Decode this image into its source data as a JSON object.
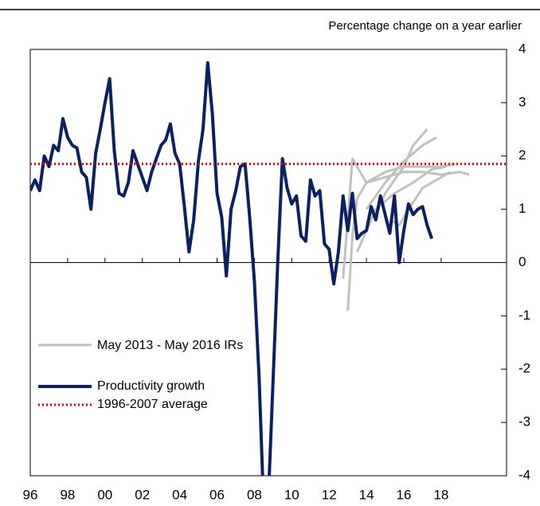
{
  "chart_data": {
    "type": "line",
    "subtitle": "Percentage change on a year earlier",
    "xlim": [
      1996,
      2021.5
    ],
    "xticks": [
      {
        "value": 1996,
        "label": "96"
      },
      {
        "value": 1998,
        "label": "98"
      },
      {
        "value": 2000,
        "label": "00"
      },
      {
        "value": 2002,
        "label": "02"
      },
      {
        "value": 2004,
        "label": "04"
      },
      {
        "value": 2006,
        "label": "06"
      },
      {
        "value": 2008,
        "label": "08"
      },
      {
        "value": 2010,
        "label": "10"
      },
      {
        "value": 2012,
        "label": "12"
      },
      {
        "value": 2014,
        "label": "14"
      },
      {
        "value": 2016,
        "label": "16"
      },
      {
        "value": 2018,
        "label": "18"
      }
    ],
    "ylim": [
      -4,
      4
    ],
    "yticks": [
      4,
      3,
      2,
      1,
      0,
      -1,
      -2,
      -3,
      -4
    ],
    "series": [
      {
        "name": "May 2013 - May 2016 IRs",
        "color": "#c0c0c0",
        "lines": [
          {
            "x": [
              2013.0,
              2013.25,
              2013.5,
              2014,
              2015,
              2016,
              2017,
              2018,
              2018.75
            ],
            "values": [
              -0.9,
              0.5,
              1.2,
              1.5,
              1.7,
              1.8,
              1.8,
              1.8,
              1.85
            ]
          },
          {
            "x": [
              2012.75,
              2013.25,
              2014,
              2015,
              2016,
              2017,
              2018,
              2019,
              2019.5
            ],
            "values": [
              -0.3,
              1.95,
              1.5,
              1.6,
              1.7,
              1.7,
              1.65,
              1.7,
              1.65
            ]
          },
          {
            "x": [
              2014.5,
              2015,
              2016,
              2016.5,
              2017.25
            ],
            "values": [
              0.9,
              1.3,
              1.8,
              2.2,
              2.5
            ]
          },
          {
            "x": [
              2014,
              2015,
              2016,
              2017,
              2017.75
            ],
            "values": [
              1.0,
              1.5,
              1.9,
              2.2,
              2.35
            ]
          },
          {
            "x": [
              2015.25,
              2015.75,
              2016.25,
              2017,
              2018,
              2018.5
            ],
            "values": [
              0.8,
              0.7,
              1.0,
              1.4,
              1.6,
              1.7
            ]
          },
          {
            "x": [
              2013.5,
              2014.5,
              2015.5,
              2016.5,
              2017.5,
              2018.25
            ],
            "values": [
              0.2,
              1.0,
              1.3,
              1.5,
              1.75,
              1.8
            ]
          }
        ]
      },
      {
        "name": "Productivity growth",
        "color": "#0b2161",
        "x": [
          1996,
          1996.25,
          1996.5,
          1996.75,
          1997,
          1997.25,
          1997.5,
          1997.75,
          1998,
          1998.25,
          1998.5,
          1998.75,
          1999,
          1999.25,
          1999.5,
          1999.75,
          2000,
          2000.25,
          2000.5,
          2000.75,
          2001,
          2001.25,
          2001.5,
          2001.75,
          2002,
          2002.25,
          2002.5,
          2002.75,
          2003,
          2003.25,
          2003.5,
          2003.75,
          2004,
          2004.25,
          2004.5,
          2004.75,
          2005,
          2005.25,
          2005.5,
          2005.75,
          2006,
          2006.25,
          2006.5,
          2006.75,
          2007,
          2007.25,
          2007.5,
          2007.75,
          2008,
          2008.25,
          2008.5,
          2008.75,
          2009,
          2009.25,
          2009.5,
          2009.75,
          2010,
          2010.25,
          2010.5,
          2010.75,
          2011,
          2011.25,
          2011.5,
          2011.75,
          2012,
          2012.25,
          2012.5,
          2012.75,
          2013,
          2013.25,
          2013.5,
          2013.75,
          2014,
          2014.25,
          2014.5,
          2014.75,
          2015,
          2015.25,
          2015.5,
          2015.75,
          2016,
          2016.25,
          2016.5,
          2016.75,
          2017,
          2017.25,
          2017.5
        ],
        "values": [
          1.35,
          1.55,
          1.35,
          2.0,
          1.8,
          2.2,
          2.1,
          2.7,
          2.35,
          2.2,
          2.15,
          1.7,
          1.6,
          1.0,
          2.05,
          2.5,
          3.0,
          3.45,
          2.1,
          1.3,
          1.25,
          1.5,
          2.1,
          1.85,
          1.6,
          1.35,
          1.7,
          1.95,
          2.2,
          2.3,
          2.6,
          2.05,
          1.85,
          1.05,
          0.2,
          0.8,
          1.9,
          2.5,
          3.75,
          2.8,
          1.3,
          0.85,
          -0.25,
          1.0,
          1.35,
          1.8,
          1.85,
          0.85,
          -0.35,
          -2.15,
          -4.6,
          -4.4,
          -2.2,
          0.0,
          1.95,
          1.4,
          1.1,
          1.25,
          0.5,
          0.4,
          1.55,
          1.25,
          1.35,
          0.35,
          0.25,
          -0.4,
          0.2,
          1.25,
          0.6,
          1.3,
          0.45,
          0.55,
          0.6,
          1.05,
          0.8,
          1.25,
          0.9,
          0.55,
          1.25,
          0.0,
          0.6,
          1.1,
          0.9,
          1.0,
          1.05,
          0.7,
          0.45
        ]
      },
      {
        "name": "1996-2007 average",
        "color": "#e00000",
        "value": 1.85
      }
    ]
  }
}
